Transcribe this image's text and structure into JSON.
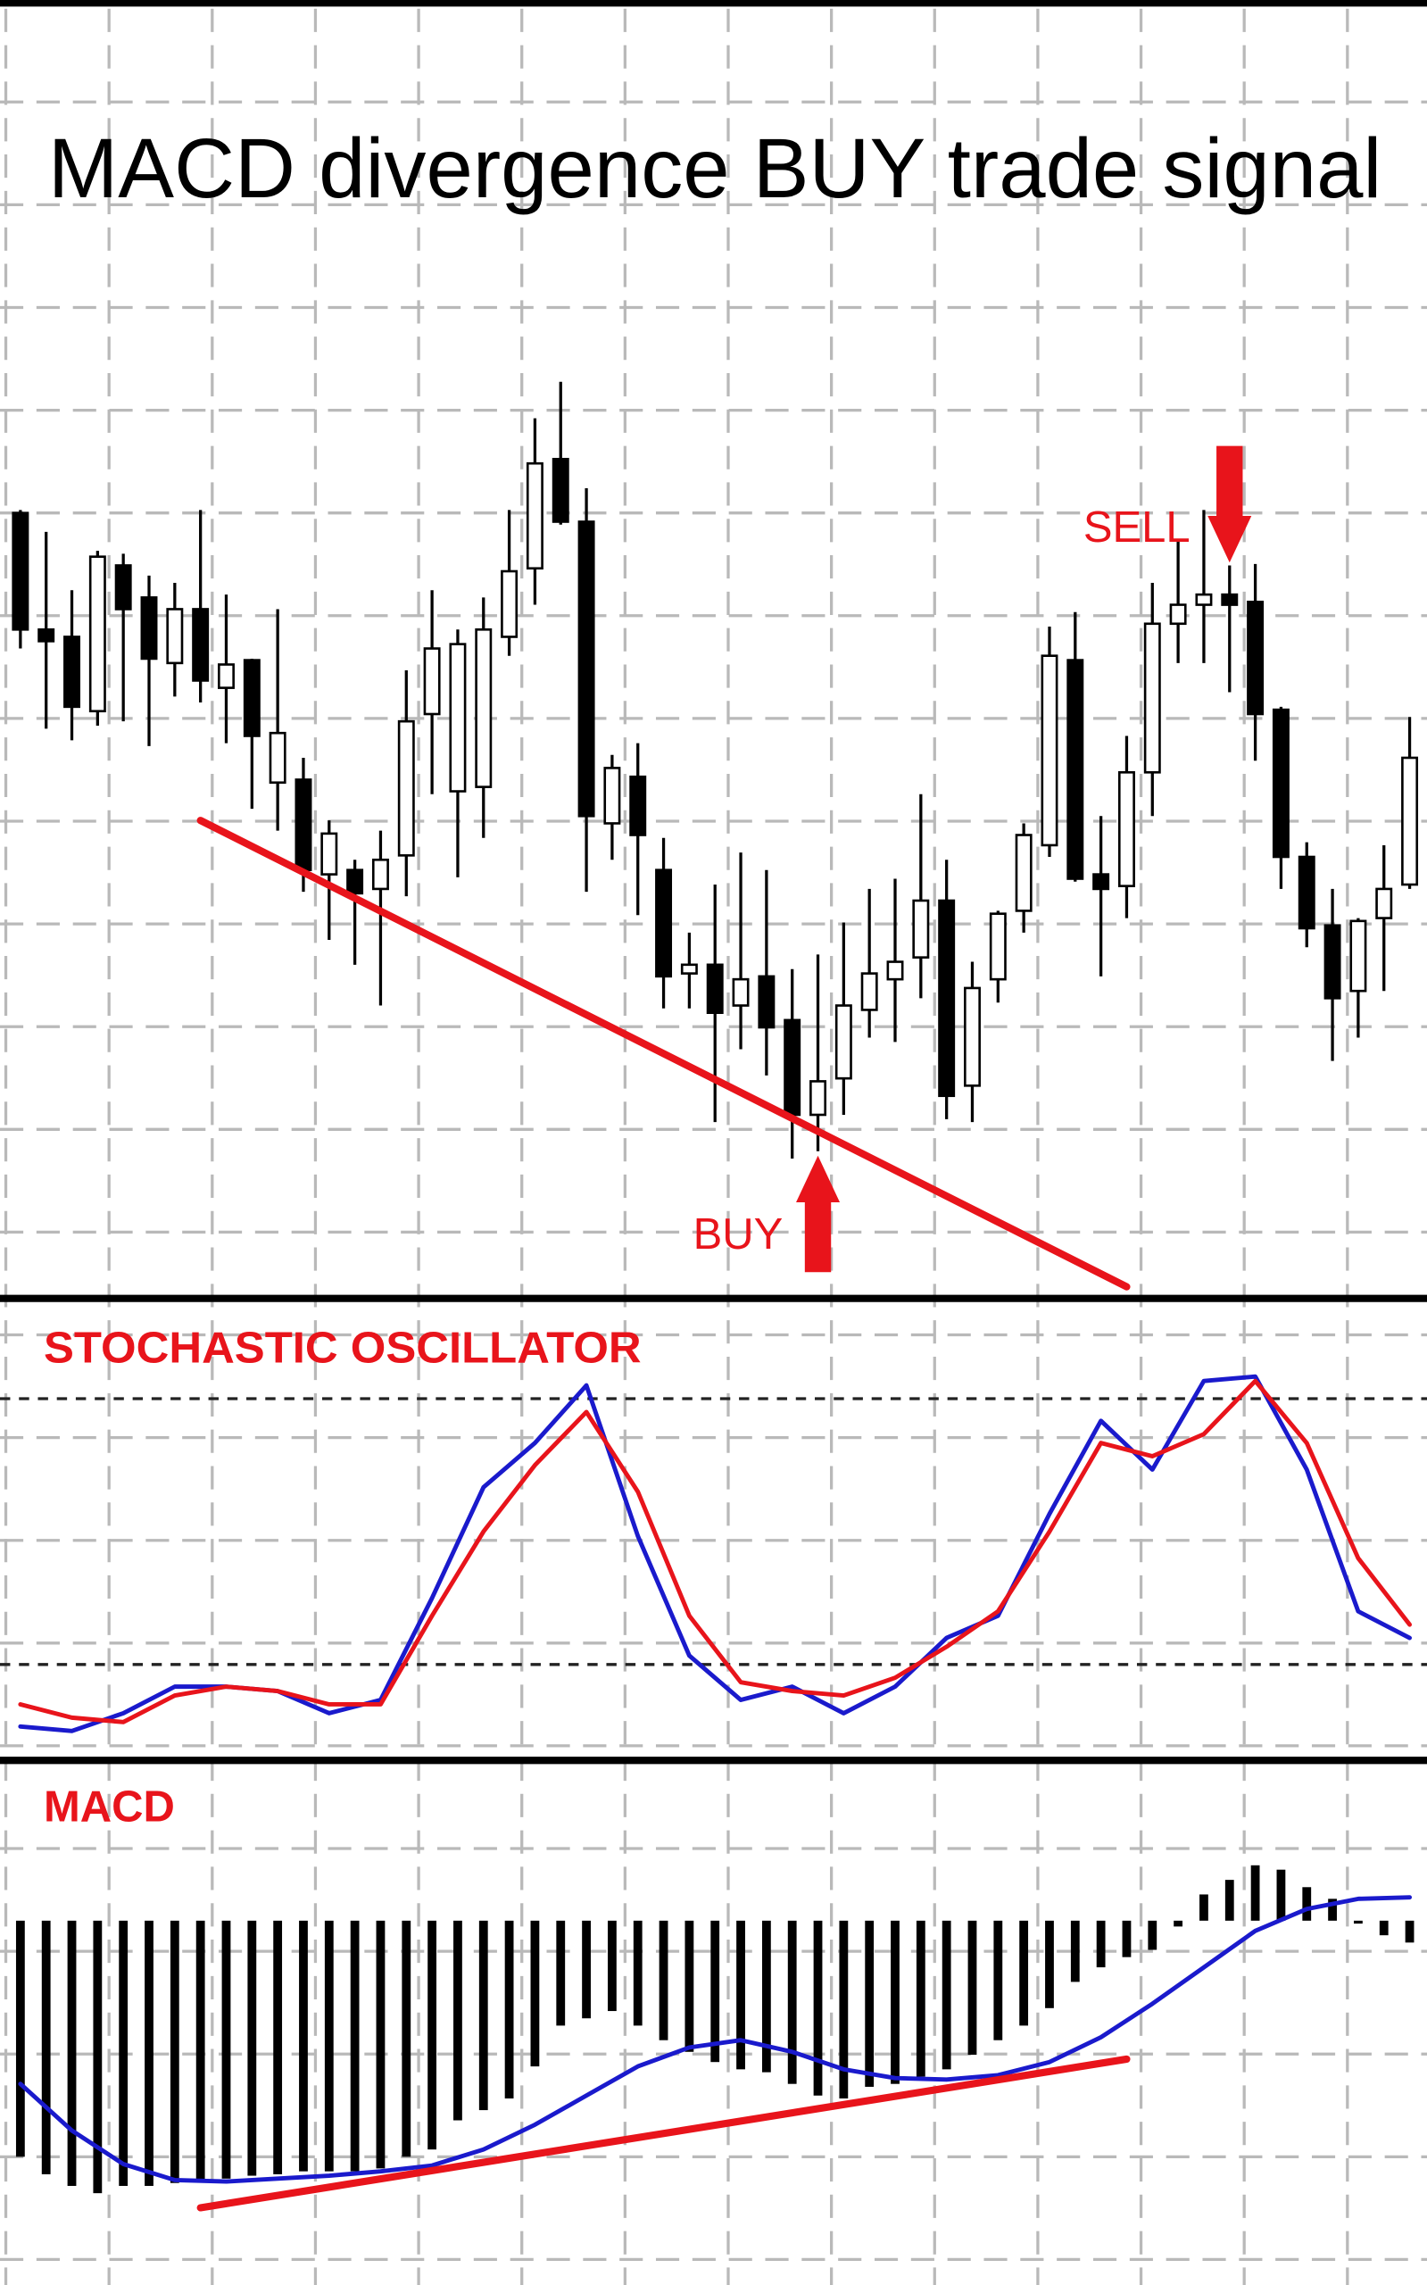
{
  "chart_data": [
    {
      "type": "candlestick",
      "title": "MACD divergence BUY trade signal",
      "open": [
        648,
        568,
        563,
        512,
        612,
        590,
        545,
        582,
        528,
        547,
        463,
        465,
        400,
        403,
        390,
        413,
        510,
        457,
        460,
        563,
        610,
        685,
        642,
        435,
        467,
        403,
        332,
        338,
        310,
        330,
        300,
        235,
        260,
        307,
        328,
        343,
        382,
        255,
        328,
        375,
        420,
        547,
        400,
        392,
        470,
        572,
        585,
        592,
        587,
        513,
        412,
        365,
        320,
        370,
        393
      ],
      "high": [
        650,
        635,
        595,
        622,
        620,
        605,
        600,
        650,
        592,
        548,
        582,
        480,
        437,
        410,
        430,
        540,
        595,
        568,
        590,
        650,
        713,
        738,
        665,
        482,
        490,
        425,
        360,
        393,
        415,
        403,
        335,
        345,
        367,
        390,
        397,
        455,
        410,
        340,
        375,
        435,
        570,
        580,
        440,
        495,
        600,
        630,
        650,
        612,
        613,
        515,
        422,
        390,
        370,
        420,
        508
      ],
      "low": [
        555,
        500,
        492,
        502,
        505,
        488,
        522,
        518,
        490,
        445,
        430,
        388,
        355,
        338,
        310,
        385,
        455,
        398,
        425,
        550,
        585,
        640,
        388,
        410,
        372,
        308,
        308,
        230,
        280,
        262,
        205,
        210,
        235,
        288,
        285,
        315,
        232,
        230,
        312,
        360,
        412,
        395,
        330,
        370,
        440,
        545,
        545,
        525,
        478,
        390,
        350,
        272,
        288,
        320,
        390
      ],
      "close": [
        568,
        560,
        515,
        618,
        582,
        548,
        582,
        533,
        544,
        495,
        497,
        403,
        428,
        387,
        410,
        505,
        555,
        558,
        568,
        608,
        682,
        642,
        440,
        473,
        427,
        330,
        338,
        305,
        328,
        295,
        235,
        258,
        310,
        332,
        340,
        382,
        248,
        322,
        373,
        427,
        550,
        397,
        390,
        470,
        572,
        585,
        592,
        585,
        510,
        412,
        363,
        315,
        368,
        390,
        480
      ],
      "up_color": "#ffffff",
      "down_color": "#000000",
      "ylim": [
        110,
        1000
      ],
      "trendline": {
        "x": [
          7,
          43
        ],
        "values": [
          437,
          117
        ],
        "color": "#e8141b"
      },
      "annotations": [
        {
          "text": "BUY",
          "x": 31,
          "direction": "up",
          "color": "#e8141b"
        },
        {
          "text": "SELL",
          "x": 47,
          "direction": "down",
          "color": "#e8141b"
        }
      ]
    },
    {
      "type": "line",
      "title": "STOCHASTIC OSCILLATOR",
      "x": [
        0,
        2,
        4,
        6,
        8,
        10,
        12,
        14,
        16,
        18,
        20,
        22,
        24,
        26,
        28,
        30,
        32,
        34,
        36,
        38,
        40,
        42,
        44,
        46,
        48,
        50,
        52,
        54
      ],
      "series": [
        {
          "color": "#1a1acc",
          "values": [
            6,
            5,
            9,
            15,
            15,
            14,
            9,
            12,
            35,
            60,
            70,
            83,
            49,
            22,
            12,
            15,
            9,
            15,
            26,
            31,
            54,
            75,
            64,
            84,
            85,
            64,
            32,
            26
          ]
        },
        {
          "color": "#e8141b",
          "values": [
            11,
            8,
            7,
            13,
            15,
            14,
            11,
            11,
            31,
            50,
            65,
            77,
            59,
            31,
            16,
            14,
            13,
            17,
            24,
            32,
            50,
            70,
            67,
            72,
            84,
            70,
            44,
            29
          ]
        }
      ],
      "levels": [
        20,
        80
      ],
      "ylim": [
        0,
        100
      ]
    },
    {
      "type": "bar",
      "title": "MACD",
      "values": [
        -16.2,
        -17.4,
        -18.2,
        -18.7,
        -18.2,
        -18.2,
        -18,
        -17.9,
        -17.7,
        -17.5,
        -17.4,
        -17.2,
        -17.2,
        -17.2,
        -17,
        -16.2,
        -15.7,
        -13.7,
        -13,
        -12.2,
        -10,
        -7.2,
        -6.7,
        -6.2,
        -7.2,
        -8.2,
        -9,
        -9.7,
        -10.2,
        -10.4,
        -11.2,
        -12,
        -12.2,
        -11.4,
        -11.2,
        -10.7,
        -10.2,
        -9.2,
        -8.2,
        -7.2,
        -6,
        -4.2,
        -3.2,
        -2.5,
        -2,
        -0.4,
        1.8,
        2.8,
        3.8,
        3.5,
        2.3,
        1.5,
        -0.2,
        -1,
        -1.5
      ],
      "color": "#000000",
      "line": {
        "x": [
          0,
          2,
          4,
          6,
          8,
          10,
          12,
          14,
          16,
          18,
          20,
          22,
          24,
          26,
          28,
          30,
          32,
          34,
          36,
          38,
          40,
          42,
          44,
          46,
          48,
          50,
          52,
          54
        ],
        "values": [
          -11.2,
          -14.4,
          -16.7,
          -17.8,
          -17.9,
          -17.7,
          -17.5,
          -17.2,
          -16.8,
          -15.7,
          -14,
          -12,
          -10,
          -8.7,
          -8.2,
          -9,
          -10.2,
          -10.8,
          -10.9,
          -10.6,
          -9.7,
          -8,
          -5.7,
          -3.2,
          -0.7,
          0.8,
          1.5,
          1.6
        ],
        "color": "#1a1acc"
      },
      "trendline": {
        "x": [
          7,
          43
        ],
        "values": [
          -19.7,
          -9.5
        ],
        "color": "#e8141b"
      },
      "ylim": [
        -25,
        11
      ]
    }
  ]
}
